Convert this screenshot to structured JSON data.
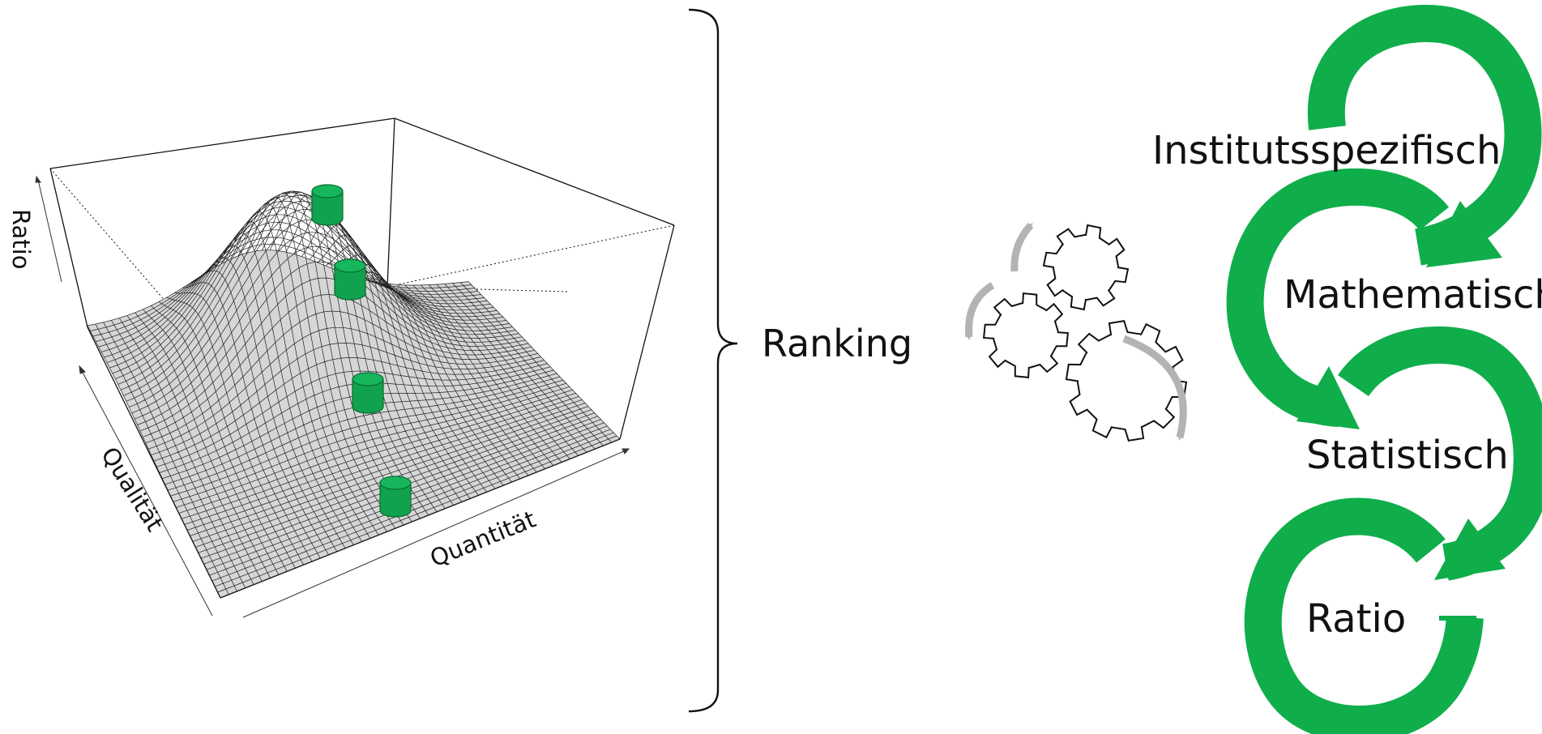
{
  "surface_plot": {
    "axis_labels": {
      "z": "Ratio",
      "y": "Qualität",
      "x": "Quantität"
    },
    "marker_count": 4
  },
  "ranking": {
    "label": "Ranking"
  },
  "cycle": {
    "steps": [
      "Institutsspezifisch",
      "Mathematisch",
      "Statistisch",
      "Ratio"
    ]
  },
  "colors": {
    "accent_green": "#0fae4b",
    "marker_green": "#10a24e",
    "surface_fill": "#d6d6d6",
    "gear_arrow_gray": "#b3b3b3",
    "line": "#111111"
  },
  "icons": [
    "gears-icon",
    "cycle-arrow-icon"
  ]
}
